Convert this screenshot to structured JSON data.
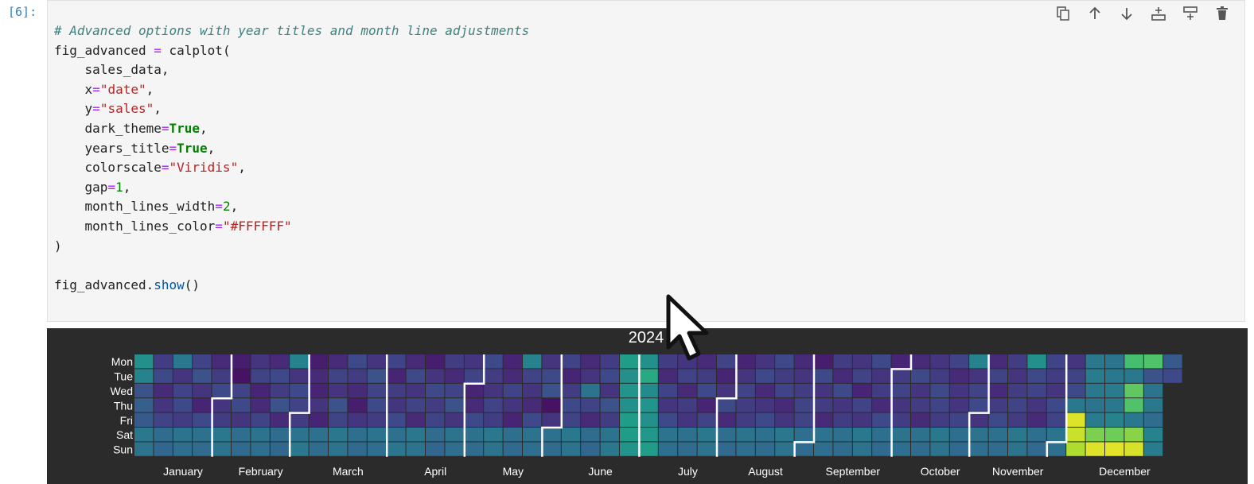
{
  "cell": {
    "prompt": "[6]:",
    "code_lines": [
      [
        {
          "t": "# Advanced options with year titles and month line adjustments",
          "c": "cm"
        }
      ],
      [
        {
          "t": "fig_advanced ",
          "c": ""
        },
        {
          "t": "=",
          "c": "op"
        },
        {
          "t": " calplot(",
          "c": ""
        }
      ],
      [
        {
          "t": "    sales_data,",
          "c": ""
        }
      ],
      [
        {
          "t": "    x",
          "c": ""
        },
        {
          "t": "=",
          "c": "op"
        },
        {
          "t": "\"date\"",
          "c": "st"
        },
        {
          "t": ",",
          "c": ""
        }
      ],
      [
        {
          "t": "    y",
          "c": ""
        },
        {
          "t": "=",
          "c": "op"
        },
        {
          "t": "\"sales\"",
          "c": "st"
        },
        {
          "t": ",",
          "c": ""
        }
      ],
      [
        {
          "t": "    dark_theme",
          "c": ""
        },
        {
          "t": "=",
          "c": "op"
        },
        {
          "t": "True",
          "c": "kw"
        },
        {
          "t": ",",
          "c": ""
        }
      ],
      [
        {
          "t": "    years_title",
          "c": ""
        },
        {
          "t": "=",
          "c": "op"
        },
        {
          "t": "True",
          "c": "kw"
        },
        {
          "t": ",",
          "c": ""
        }
      ],
      [
        {
          "t": "    colorscale",
          "c": ""
        },
        {
          "t": "=",
          "c": "op"
        },
        {
          "t": "\"Viridis\"",
          "c": "st"
        },
        {
          "t": ",",
          "c": ""
        }
      ],
      [
        {
          "t": "    gap",
          "c": ""
        },
        {
          "t": "=",
          "c": "op"
        },
        {
          "t": "1",
          "c": "nm"
        },
        {
          "t": ",",
          "c": ""
        }
      ],
      [
        {
          "t": "    month_lines_width",
          "c": ""
        },
        {
          "t": "=",
          "c": "op"
        },
        {
          "t": "2",
          "c": "nm"
        },
        {
          "t": ",",
          "c": ""
        }
      ],
      [
        {
          "t": "    month_lines_color",
          "c": ""
        },
        {
          "t": "=",
          "c": "op"
        },
        {
          "t": "\"#FFFFFF\"",
          "c": "st"
        }
      ],
      [
        {
          "t": ")",
          "c": ""
        }
      ],
      [
        {
          "t": "",
          "c": ""
        }
      ],
      [
        {
          "t": "fig_advanced.",
          "c": ""
        },
        {
          "t": "show",
          "c": "fn"
        },
        {
          "t": "()",
          "c": ""
        }
      ]
    ],
    "toolbar": [
      {
        "name": "duplicate-cell-icon"
      },
      {
        "name": "move-up-icon"
      },
      {
        "name": "move-down-icon"
      },
      {
        "name": "insert-below-icon"
      },
      {
        "name": "insert-above-icon"
      },
      {
        "name": "delete-cell-icon"
      }
    ]
  },
  "chart_data": {
    "type": "heatmap",
    "title": "2024",
    "colorscale": "Viridis",
    "dark_theme": true,
    "month_lines_color": "#FFFFFF",
    "weekday_labels": [
      "Mon",
      "Tue",
      "Wed",
      "Thu",
      "Fri",
      "Sat",
      "Sun"
    ],
    "month_labels": [
      "January",
      "February",
      "March",
      "April",
      "May",
      "June",
      "July",
      "August",
      "September",
      "October",
      "November",
      "December"
    ],
    "start_date": "2024-01-01",
    "weeks": [
      [
        0.5,
        0.45,
        0.25,
        0.3,
        0.28,
        0.4,
        0.38
      ],
      [
        0.18,
        0.22,
        0.12,
        0.15,
        0.2,
        0.35,
        0.33
      ],
      [
        0.4,
        0.15,
        0.2,
        0.22,
        0.18,
        0.38,
        0.36
      ],
      [
        0.2,
        0.25,
        0.15,
        0.1,
        0.22,
        0.37,
        0.35
      ],
      [
        0.12,
        0.18,
        0.22,
        0.15,
        0.18,
        0.4,
        0.38
      ],
      [
        0.08,
        0.05,
        0.2,
        0.22,
        0.15,
        0.36,
        0.34
      ],
      [
        0.15,
        0.2,
        0.1,
        0.12,
        0.2,
        0.38,
        0.36
      ],
      [
        0.12,
        0.22,
        0.18,
        0.25,
        0.12,
        0.35,
        0.33
      ],
      [
        0.45,
        0.15,
        0.22,
        0.2,
        0.18,
        0.38,
        0.4
      ],
      [
        0.08,
        0.12,
        0.1,
        0.15,
        0.1,
        0.37,
        0.35
      ],
      [
        0.12,
        0.2,
        0.15,
        0.25,
        0.2,
        0.4,
        0.38
      ],
      [
        0.22,
        0.18,
        0.12,
        0.08,
        0.15,
        0.36,
        0.34
      ],
      [
        0.15,
        0.25,
        0.2,
        0.22,
        0.18,
        0.38,
        0.36
      ],
      [
        0.2,
        0.1,
        0.18,
        0.15,
        0.22,
        0.37,
        0.39
      ],
      [
        0.12,
        0.22,
        0.15,
        0.2,
        0.12,
        0.4,
        0.38
      ],
      [
        0.08,
        0.15,
        0.22,
        0.18,
        0.2,
        0.35,
        0.33
      ],
      [
        0.18,
        0.12,
        0.2,
        0.25,
        0.15,
        0.38,
        0.36
      ],
      [
        0.15,
        0.2,
        0.1,
        0.12,
        0.22,
        0.37,
        0.35
      ],
      [
        0.22,
        0.18,
        0.15,
        0.2,
        0.18,
        0.4,
        0.38
      ],
      [
        0.1,
        0.12,
        0.2,
        0.15,
        0.1,
        0.36,
        0.34
      ],
      [
        0.45,
        0.2,
        0.15,
        0.12,
        0.22,
        0.38,
        0.36
      ],
      [
        0.15,
        0.22,
        0.25,
        0.05,
        0.15,
        0.37,
        0.35
      ],
      [
        0.2,
        0.1,
        0.18,
        0.22,
        0.2,
        0.4,
        0.38
      ],
      [
        0.12,
        0.15,
        0.38,
        0.2,
        0.12,
        0.35,
        0.33
      ],
      [
        0.18,
        0.22,
        0.15,
        0.25,
        0.18,
        0.38,
        0.4
      ],
      [
        0.55,
        0.5,
        0.52,
        0.5,
        0.55,
        0.55,
        0.52
      ],
      [
        0.5,
        0.6,
        0.48,
        0.52,
        0.5,
        0.53,
        0.55
      ],
      [
        0.18,
        0.12,
        0.2,
        0.15,
        0.22,
        0.38,
        0.36
      ],
      [
        0.15,
        0.2,
        0.12,
        0.18,
        0.15,
        0.37,
        0.35
      ],
      [
        0.12,
        0.18,
        0.22,
        0.1,
        0.2,
        0.4,
        0.38
      ],
      [
        0.2,
        0.1,
        0.15,
        0.22,
        0.12,
        0.36,
        0.34
      ],
      [
        0.1,
        0.15,
        0.2,
        0.18,
        0.18,
        0.38,
        0.36
      ],
      [
        0.15,
        0.22,
        0.12,
        0.15,
        0.22,
        0.37,
        0.35
      ],
      [
        0.22,
        0.18,
        0.2,
        0.12,
        0.15,
        0.4,
        0.38
      ],
      [
        0.12,
        0.15,
        0.18,
        0.2,
        0.2,
        0.36,
        0.34
      ],
      [
        0.08,
        0.22,
        0.15,
        0.18,
        0.12,
        0.38,
        0.36
      ],
      [
        0.18,
        0.12,
        0.22,
        0.15,
        0.18,
        0.37,
        0.35
      ],
      [
        0.15,
        0.2,
        0.1,
        0.2,
        0.15,
        0.4,
        0.38
      ],
      [
        0.22,
        0.15,
        0.18,
        0.12,
        0.22,
        0.36,
        0.34
      ],
      [
        0.1,
        0.18,
        0.2,
        0.15,
        0.18,
        0.38,
        0.36
      ],
      [
        0.12,
        0.22,
        0.15,
        0.18,
        0.12,
        0.37,
        0.35
      ],
      [
        0.15,
        0.18,
        0.22,
        0.2,
        0.18,
        0.4,
        0.38
      ],
      [
        0.2,
        0.12,
        0.15,
        0.15,
        0.2,
        0.36,
        0.34
      ],
      [
        0.45,
        0.15,
        0.2,
        0.22,
        0.15,
        0.38,
        0.36
      ],
      [
        0.12,
        0.2,
        0.12,
        0.18,
        0.22,
        0.37,
        0.35
      ],
      [
        0.18,
        0.15,
        0.18,
        0.2,
        0.18,
        0.4,
        0.38
      ],
      [
        0.5,
        0.22,
        0.2,
        0.15,
        0.12,
        0.36,
        0.34
      ],
      [
        0.2,
        0.18,
        0.15,
        0.22,
        0.2,
        0.38,
        0.36
      ],
      [
        0.15,
        0.2,
        0.22,
        0.4,
        0.95,
        0.92,
        0.88
      ],
      [
        0.4,
        0.42,
        0.4,
        0.38,
        0.42,
        0.8,
        0.95
      ],
      [
        0.38,
        0.4,
        0.42,
        0.4,
        0.45,
        0.78,
        0.96
      ],
      [
        0.7,
        0.4,
        0.75,
        0.72,
        0.4,
        0.82,
        0.94
      ],
      [
        0.72,
        0.25,
        0.38,
        0.4,
        0.35,
        0.45,
        0.42
      ],
      [
        0.28,
        0.22,
        null,
        null,
        null,
        null,
        null
      ]
    ]
  }
}
